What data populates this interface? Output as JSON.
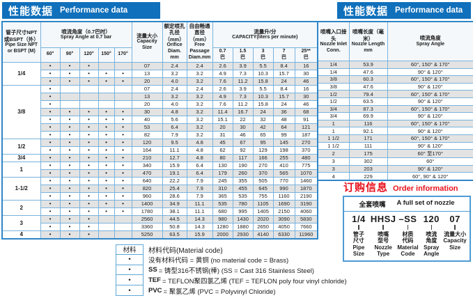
{
  "left": {
    "title_cn": "性能数据",
    "title_en": "Performance data"
  },
  "right": {
    "title_cn": "性能数据",
    "title_en": "Performance data"
  },
  "perf": {
    "col_pipe_cn": "管子尺寸NPT 或BSPT（外）",
    "col_pipe_en": "Pipe Size NPT or BSPT (M)",
    "col_angle_cn": "喷流角度（0.7巴时）",
    "col_angle_en": "Spray Angle at 0.7 bar",
    "angle_cols": [
      "60°",
      "90°",
      "120°",
      "150°",
      "170°"
    ],
    "col_capsize_cn": "流量大小",
    "col_capsize_en": "Capacity Size",
    "col_orifice_cn": "额定喷孔孔径（mm）",
    "col_orifice_en": "Orifice Diam. mm",
    "col_free_cn": "自由畅通直径（mm）",
    "col_free_en": "Free Passage Diam.mm",
    "col_capacity_cn": "流量升/分",
    "col_capacity_en": "CAPACITY(liters per minute)",
    "pressure_cols": [
      "0.7",
      "1.5",
      "3",
      "7",
      "25**"
    ],
    "pressure_unit": "巴",
    "groups": [
      {
        "label": "1/4",
        "span": 3
      },
      {
        "label": "3/8",
        "span": 7
      },
      {
        "label": "1/2",
        "span": 2
      },
      {
        "label": "3/4",
        "span": 1
      },
      {
        "label": "1",
        "span": 2
      },
      {
        "label": "1-1/2",
        "span": 3
      },
      {
        "label": "2",
        "span": 2
      },
      {
        "label": "3",
        "span": 2
      },
      {
        "label": "4",
        "span": 1
      }
    ],
    "rows": [
      {
        "dots": [
          1,
          1,
          1,
          0,
          0
        ],
        "size": "07",
        "orifice": "2.4",
        "free": "2.4",
        "cap": [
          "2.6",
          "3.9",
          "5.5",
          "8.4",
          "16"
        ]
      },
      {
        "dots": [
          1,
          1,
          1,
          1,
          1
        ],
        "size": "13",
        "orifice": "3.2",
        "free": "3.2",
        "cap": [
          "4.9",
          "7.3",
          "10.3",
          "15.7",
          "30"
        ]
      },
      {
        "dots": [
          1,
          1,
          1,
          1,
          1
        ],
        "size": "20",
        "orifice": "4.0",
        "free": "3.2",
        "cap": [
          "7.6",
          "11.2",
          "15.8",
          "24",
          "46"
        ]
      },
      {
        "dots": [
          1,
          0,
          0,
          0,
          0
        ],
        "size": "07",
        "orifice": "2.4",
        "free": "2.4",
        "cap": [
          "2.6",
          "3.9",
          "5.5",
          "8.4",
          "16"
        ]
      },
      {
        "dots": [
          1,
          0,
          0,
          0,
          0
        ],
        "size": "13",
        "orifice": "3.2",
        "free": "3.2",
        "cap": [
          "4.9",
          "7.3",
          "10.3",
          "15.7",
          "30"
        ]
      },
      {
        "dots": [
          1,
          0,
          0,
          0,
          0
        ],
        "size": "20",
        "orifice": "4.0",
        "free": "3.2",
        "cap": [
          "7.6",
          "11.2",
          "15.8",
          "24",
          "46"
        ]
      },
      {
        "dots": [
          1,
          1,
          1,
          1,
          1
        ],
        "size": "30",
        "orifice": "4.8",
        "free": "3.2",
        "cap": [
          "11.4",
          "16.7",
          "24",
          "36",
          "68"
        ]
      },
      {
        "dots": [
          1,
          1,
          1,
          1,
          1
        ],
        "size": "40",
        "orifice": "5.6",
        "free": "3.2",
        "cap": [
          "15.1",
          "22",
          "32",
          "48",
          "91"
        ]
      },
      {
        "dots": [
          1,
          1,
          1,
          1,
          1
        ],
        "size": "53",
        "orifice": "6.4",
        "free": "3.2",
        "cap": [
          "20",
          "30",
          "42",
          "64",
          "121"
        ]
      },
      {
        "dots": [
          1,
          1,
          1,
          1,
          1
        ],
        "size": "82",
        "orifice": "7.9",
        "free": "3.2",
        "cap": [
          "31",
          "46",
          "65",
          "99",
          "187"
        ]
      },
      {
        "dots": [
          1,
          1,
          1,
          1,
          1
        ],
        "size": "120",
        "orifice": "9.5",
        "free": "4.8",
        "cap": [
          "45",
          "67",
          "95",
          "145",
          "270"
        ]
      },
      {
        "dots": [
          1,
          1,
          1,
          1,
          1
        ],
        "size": "164",
        "orifice": "11.1",
        "free": "4.8",
        "cap": [
          "62",
          "92",
          "129",
          "198",
          "370"
        ]
      },
      {
        "dots": [
          1,
          1,
          1,
          1,
          1
        ],
        "size": "210",
        "orifice": "12.7",
        "free": "4.8",
        "cap": [
          "80",
          "117",
          "166",
          "255",
          "480"
        ]
      },
      {
        "dots": [
          1,
          1,
          1,
          1,
          1
        ],
        "size": "340",
        "orifice": "15.9",
        "free": "6.4",
        "cap": [
          "130",
          "190",
          "270",
          "410",
          "775"
        ]
      },
      {
        "dots": [
          1,
          1,
          1,
          1,
          1
        ],
        "size": "470",
        "orifice": "19.1",
        "free": "6.4",
        "cap": [
          "179",
          "260",
          "370",
          "565",
          "1070"
        ]
      },
      {
        "dots": [
          1,
          1,
          1,
          1,
          1
        ],
        "size": "640",
        "orifice": "22.2",
        "free": "7.9",
        "cap": [
          "245",
          "355",
          "505",
          "770",
          "1460"
        ]
      },
      {
        "dots": [
          1,
          1,
          1,
          1,
          1
        ],
        "size": "820",
        "orifice": "25.4",
        "free": "7.9",
        "cap": [
          "310",
          "455",
          "645",
          "990",
          "1870"
        ]
      },
      {
        "dots": [
          1,
          1,
          1,
          1,
          1
        ],
        "size": "960",
        "orifice": "28.6",
        "free": "7.9",
        "cap": [
          "365",
          "535",
          "755",
          "1160",
          "2190"
        ]
      },
      {
        "dots": [
          1,
          1,
          1,
          1,
          1
        ],
        "size": "1400",
        "orifice": "34.9",
        "free": "11.1",
        "cap": [
          "535",
          "780",
          "1105",
          "1690",
          "3190"
        ]
      },
      {
        "dots": [
          1,
          1,
          1,
          1,
          1
        ],
        "size": "1780",
        "orifice": "38.1",
        "free": "11.1",
        "cap": [
          "680",
          "995",
          "1405",
          "2150",
          "4060"
        ]
      },
      {
        "dots": [
          1,
          1,
          1,
          0,
          0
        ],
        "size": "2560",
        "orifice": "44.5",
        "free": "14.3",
        "cap": [
          "980",
          "1430",
          "2020",
          "3090",
          "5830"
        ]
      },
      {
        "dots": [
          1,
          1,
          1,
          0,
          0
        ],
        "size": "3360",
        "orifice": "50.8",
        "free": "14.3",
        "cap": [
          "1280",
          "1880",
          "2650",
          "4050",
          "7660"
        ]
      },
      {
        "dots": [
          1,
          1,
          1,
          0,
          0
        ],
        "size": "5250",
        "orifice": "63.5",
        "free": "15.9",
        "cap": [
          "2000",
          "2930",
          "4140",
          "6330",
          "11960"
        ]
      }
    ]
  },
  "nozzle": {
    "col_inlet_cn": "喷嘴入口接头",
    "col_inlet_en": "Nozzle Inlet Conn.",
    "col_length_cn": "喷嘴长度（毫米）",
    "col_length_en": "Nozzle Length mm",
    "col_angle_cn": "喷流角度",
    "col_angle_en": "Spray Angle",
    "rows": [
      {
        "inlet": "1/4",
        "length": "53.9",
        "angle": "60°, 150° & 170°"
      },
      {
        "inlet": "1/4",
        "length": "47.6",
        "angle": "90° & 120°"
      },
      {
        "inlet": "3/8",
        "length": "60.3",
        "angle": "60°, 150° & 170°"
      },
      {
        "inlet": "3/8",
        "length": "47.6",
        "angle": "90° & 120°"
      },
      {
        "inlet": "1/2",
        "length": "79.4",
        "angle": "60°, 150° & 170°"
      },
      {
        "inlet": "1/2",
        "length": "63.5",
        "angle": "90° & 120°"
      },
      {
        "inlet": "3/4",
        "length": "87.3",
        "angle": "60°, 150° & 170°"
      },
      {
        "inlet": "3/4",
        "length": "69.9",
        "angle": "90° & 120°"
      },
      {
        "inlet": "1",
        "length": "116",
        "angle": "60°, 150° & 170°"
      },
      {
        "inlet": "1",
        "length": "92.1",
        "angle": "90° & 120°"
      },
      {
        "inlet": "1 1/2",
        "length": "171",
        "angle": "60°, 150° & 170°"
      },
      {
        "inlet": "1 1/2",
        "length": "111",
        "angle": "90° & 120°"
      },
      {
        "inlet": "2",
        "length": "175",
        "angle": "60° 至170°"
      },
      {
        "inlet": "3",
        "length": "302",
        "angle": "60°"
      },
      {
        "inlet": "3",
        "length": "203",
        "angle": "90° & 120°"
      },
      {
        "inlet": "4",
        "length": "229",
        "angle": "60°, 90° & 120°"
      }
    ]
  },
  "material": {
    "col_header": "材料",
    "title": "材料代码(Material code)",
    "bullet": "•",
    "rows": [
      {
        "bold": "",
        "text": "没有材料代码 = 黄铜  (no material code = Brass)"
      },
      {
        "bold": "SS",
        "text": "= 铸型316不锈钢(棒) (SS = Cast 316 Stainless Steel)"
      },
      {
        "bold": "TEF",
        "text": "= TEFLON聚四氯乙烯 (TEF = TEFLON poly four vinyl chloride)"
      },
      {
        "bold": "PVC",
        "text": "= 聚氯乙烯 (PVC = Polyvinyl Chloride)"
      }
    ]
  },
  "order": {
    "title_cn": "订购信息",
    "title_en": "Order information",
    "set_cn": "全套喷嘴",
    "set_en": "A full set of nozzle",
    "parts": [
      {
        "code": "1/4",
        "lines": [
          "管子",
          "尺寸",
          "Pipe",
          "Size"
        ]
      },
      {
        "code": "HHSJ",
        "lines": [
          "喷嘴",
          "型号",
          "Nozzle",
          "Type"
        ]
      },
      {
        "code": "–SS",
        "lines": [
          "材质",
          "代码",
          "Material",
          "Code"
        ]
      },
      {
        "code": "120",
        "lines": [
          "喷流",
          "角度",
          "Spray",
          "Angle"
        ]
      },
      {
        "code": "07",
        "lines": [
          "流量大小",
          "Capacity",
          "Size"
        ]
      }
    ]
  },
  "colors": {
    "title_blue": "#1070bb",
    "border_blue": "#2e86c8",
    "stripe_grey": "#e3e3e3",
    "order_red": "#e8111c"
  }
}
